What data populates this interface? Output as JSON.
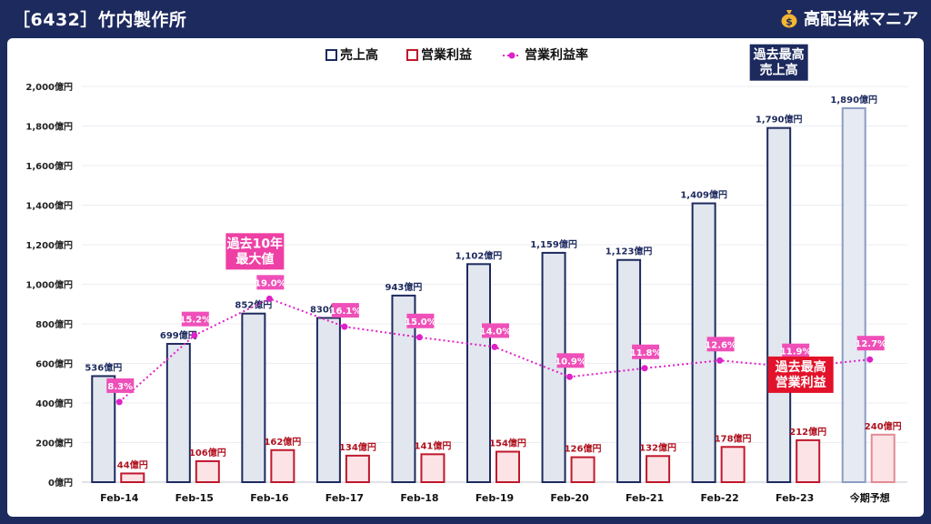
{
  "header": {
    "title": "［6432］竹内製作所",
    "brand": "高配当株マニア"
  },
  "colors": {
    "navy": "#1d2a5e",
    "revenue_fill": "#e2e6ee",
    "revenue_stroke": "#1d2a5e",
    "forecast_fill": "#e6eaf2",
    "forecast_stroke": "#8c9cc4",
    "profit_fill": "#fbe3e6",
    "profit_stroke": "#c0182c",
    "forecast_profit_fill": "#fbe3e6",
    "forecast_profit_stroke": "#e38a95",
    "margin": "#e020c8",
    "margin_label_bg": "#ef4fb8",
    "callout_pink": "#ee3fa4",
    "callout_red": "#e2122a"
  },
  "chart_data": {
    "type": "bar",
    "title": "",
    "xlabel": "",
    "ylabel": "",
    "categories": [
      "Feb-14",
      "Feb-15",
      "Feb-16",
      "Feb-17",
      "Feb-18",
      "Feb-19",
      "Feb-20",
      "Feb-21",
      "Feb-22",
      "Feb-23",
      "今期予想"
    ],
    "ylim": [
      0,
      2000
    ],
    "yticks": [
      0,
      200,
      400,
      600,
      800,
      1000,
      1200,
      1400,
      1600,
      1800,
      2000
    ],
    "ytick_labels": [
      "0億円",
      "200億円",
      "400億円",
      "600億円",
      "800億円",
      "1,000億円",
      "1,200億円",
      "1,400億円",
      "1,600億円",
      "1,800億円",
      "2,000億円"
    ],
    "grid": true,
    "legend_position": "top-center",
    "series": [
      {
        "name": "売上高",
        "kind": "bar",
        "values": [
          536,
          699,
          852,
          830,
          943,
          1102,
          1159,
          1123,
          1409,
          1790,
          1890
        ],
        "labels": [
          "536億円",
          "699億円",
          "852億円",
          "830億円",
          "943億円",
          "1,102億円",
          "1,159億円",
          "1,123億円",
          "1,409億円",
          "1,790億円",
          "1,890億円"
        ]
      },
      {
        "name": "営業利益",
        "kind": "bar",
        "values": [
          44,
          106,
          162,
          134,
          141,
          154,
          126,
          132,
          178,
          212,
          240
        ],
        "labels": [
          "44億円",
          "106億円",
          "162億円",
          "134億円",
          "141億円",
          "154億円",
          "126億円",
          "132億円",
          "178億円",
          "212億円",
          "240億円"
        ]
      },
      {
        "name": "営業利益率",
        "kind": "line",
        "values": [
          8.3,
          15.2,
          19.0,
          16.1,
          15.0,
          14.0,
          10.9,
          11.8,
          12.6,
          11.9,
          12.7
        ],
        "labels": [
          "8.3%",
          "15.2%",
          "19.0%",
          "16.1%",
          "15.0%",
          "14.0%",
          "10.9%",
          "11.8%",
          "12.6%",
          "11.9%",
          "12.7%"
        ]
      }
    ],
    "forecast_category_index": 10,
    "annotations": [
      {
        "id": "max10",
        "lines": [
          "過去10年",
          "最大値"
        ],
        "target_series": 2,
        "target_index": 2
      },
      {
        "id": "record_sales",
        "lines": [
          "過去最高",
          "売上高"
        ],
        "target_series": 0,
        "target_index": 9
      },
      {
        "id": "record_profit",
        "lines": [
          "過去最高",
          "営業利益"
        ],
        "target_series": 1,
        "target_index": 9
      }
    ]
  }
}
